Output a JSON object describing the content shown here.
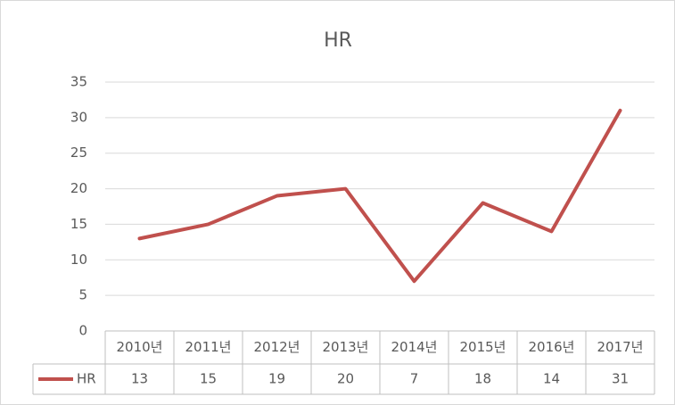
{
  "chart_data": {
    "type": "line",
    "title": "HR",
    "categories": [
      "2010년",
      "2011년",
      "2012년",
      "2013년",
      "2014년",
      "2015년",
      "2016년",
      "2017년"
    ],
    "series": [
      {
        "name": "HR",
        "color": "#c0504d",
        "values": [
          13,
          15,
          19,
          20,
          7,
          18,
          14,
          31
        ]
      }
    ],
    "ylim": [
      0,
      35
    ],
    "yticks": [
      0,
      5,
      10,
      15,
      20,
      25,
      30,
      35
    ],
    "grid": true,
    "data_table": true
  }
}
